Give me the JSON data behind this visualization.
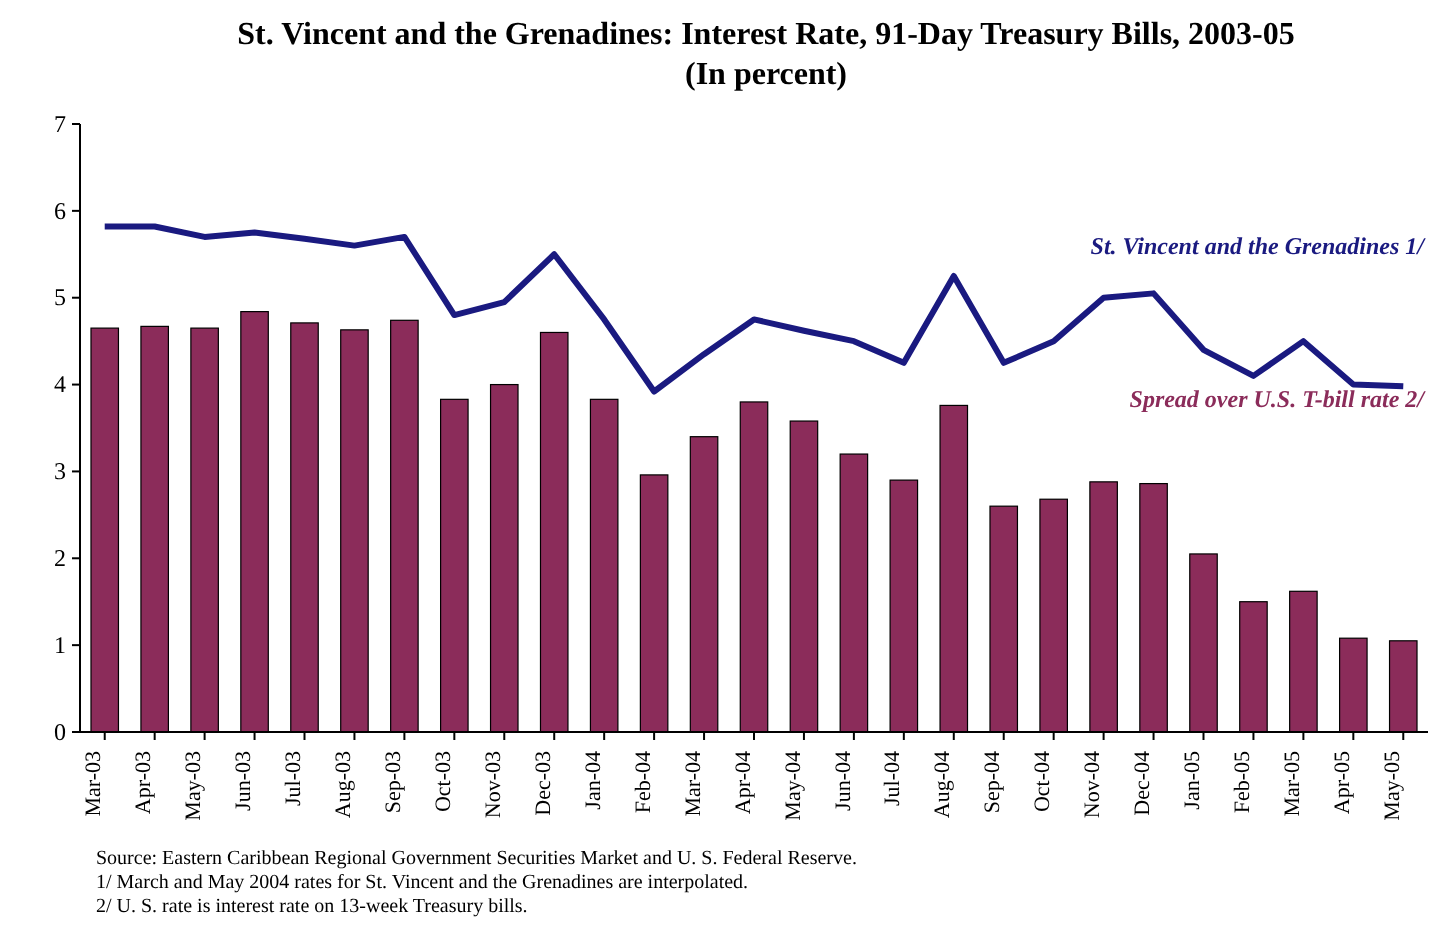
{
  "chart_data": {
    "type": "bar",
    "title": "St. Vincent and the Grenadines: Interest Rate, 91-Day Treasury Bills, 2003-05",
    "subtitle": "(In percent)",
    "categories": [
      "Mar-03",
      "Apr-03",
      "May-03",
      "Jun-03",
      "Jul-03",
      "Aug-03",
      "Sep-03",
      "Oct-03",
      "Nov-03",
      "Dec-03",
      "Jan-04",
      "Feb-04",
      "Mar-04",
      "Apr-04",
      "May-04",
      "Jun-04",
      "Jul-04",
      "Aug-04",
      "Sep-04",
      "Oct-04",
      "Nov-04",
      "Dec-04",
      "Jan-05",
      "Feb-05",
      "Mar-05",
      "Apr-05",
      "May-05"
    ],
    "series": [
      {
        "name": "Spread over U.S. T-bill rate 2/",
        "color": "#8b2c5a",
        "values": [
          4.65,
          4.67,
          4.65,
          4.84,
          4.71,
          4.63,
          4.74,
          3.83,
          4.0,
          4.6,
          3.83,
          2.96,
          3.4,
          3.8,
          3.58,
          3.2,
          2.9,
          3.76,
          2.6,
          2.68,
          2.88,
          2.86,
          2.05,
          1.5,
          1.62,
          1.08,
          1.05
        ]
      },
      {
        "name": "St. Vincent and the Grenadines 1/",
        "type": "line",
        "color": "#1a1a80",
        "values": [
          5.82,
          5.82,
          5.7,
          5.75,
          5.68,
          5.6,
          5.7,
          4.8,
          4.95,
          5.5,
          4.75,
          3.92,
          4.35,
          4.75,
          4.62,
          4.5,
          4.25,
          5.25,
          4.25,
          4.5,
          5.0,
          5.05,
          4.4,
          4.1,
          4.5,
          4.0,
          3.98
        ]
      }
    ],
    "ylim": [
      0,
      7
    ],
    "yticks": [
      0,
      1,
      2,
      3,
      4,
      5,
      6,
      7
    ],
    "grid": false,
    "legend": false,
    "marker": "none",
    "line_style": "solid",
    "annotations": [
      "Source: Eastern Caribbean Regional Government Securities Market and U. S. Federal Reserve.",
      "1/ March and May 2004 rates for St. Vincent and the Grenadines are interpolated.",
      "2/ U. S. rate is interest rate on 13-week Treasury bills."
    ]
  }
}
